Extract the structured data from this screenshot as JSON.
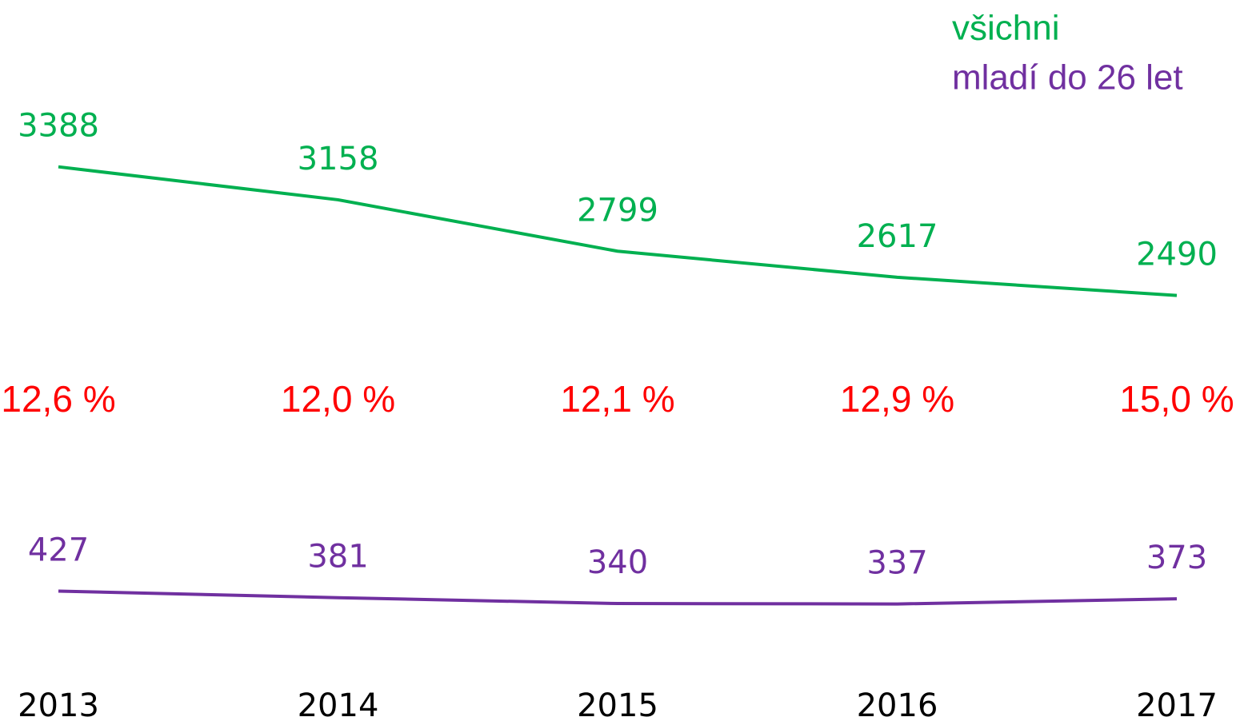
{
  "chart_data": {
    "type": "line",
    "categories": [
      "2013",
      "2014",
      "2015",
      "2016",
      "2017"
    ],
    "series": [
      {
        "name": "všichni",
        "color": "#00b050",
        "values": [
          3388,
          3158,
          2799,
          2617,
          2490
        ]
      },
      {
        "name": "mladí do 26 let",
        "color": "#7030a0",
        "values": [
          427,
          381,
          340,
          337,
          373
        ]
      }
    ],
    "annotations": [
      "12,6 %",
      "12,0 %",
      "12,1 %",
      "12,9 %",
      "15,0 %"
    ],
    "annotation_color": "#ff0000",
    "ylim": [
      0,
      4000
    ],
    "legend": "top-right"
  }
}
